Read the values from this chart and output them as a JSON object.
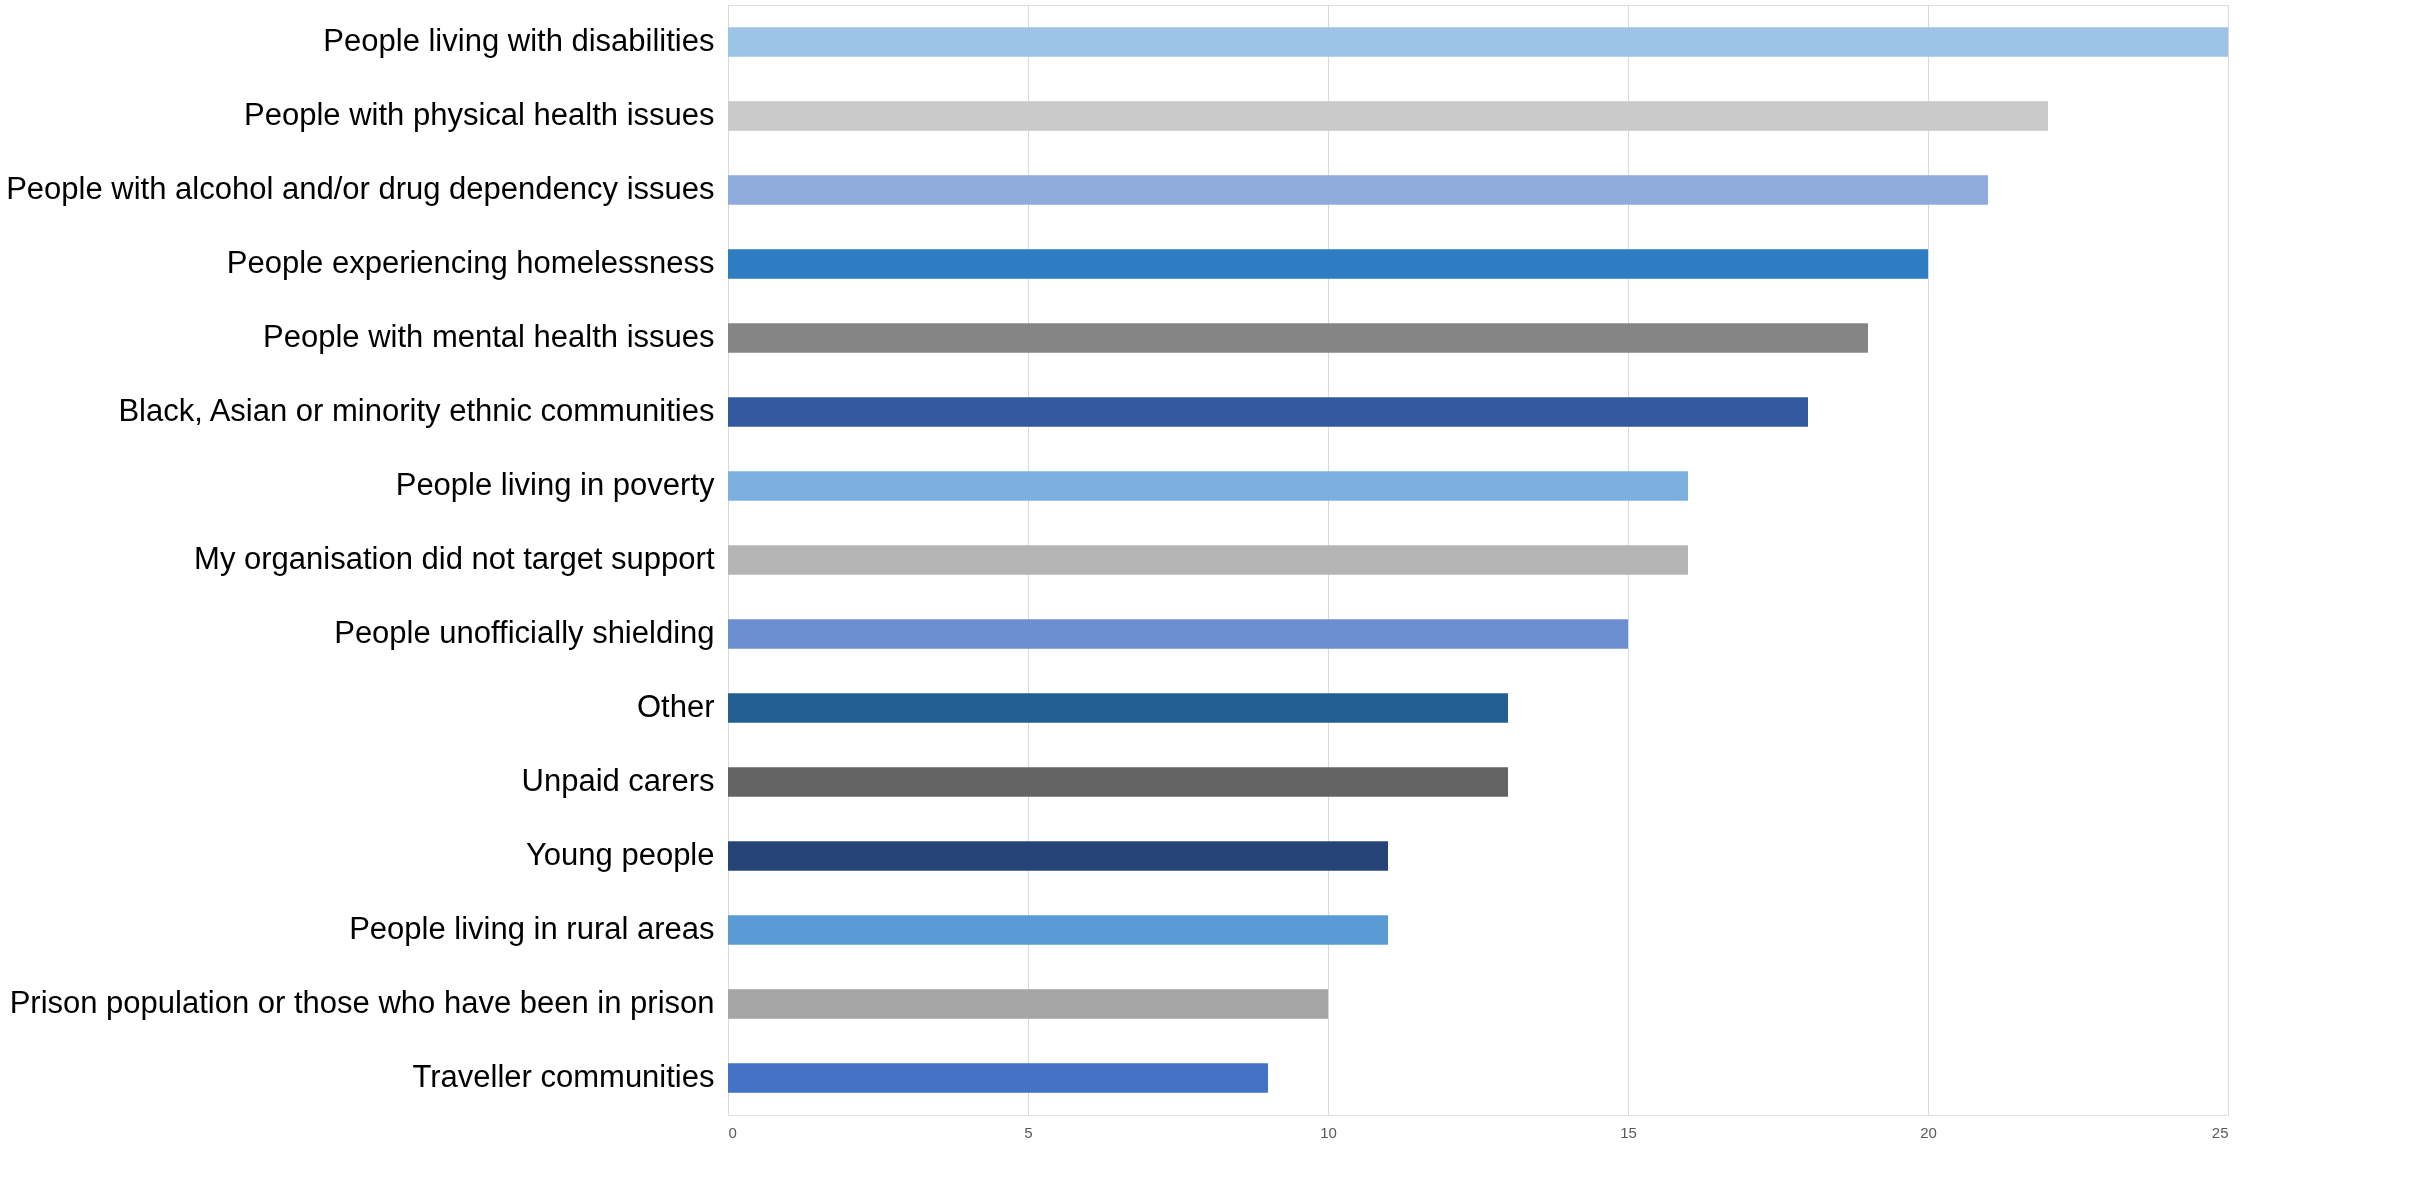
{
  "chart_data": {
    "type": "bar",
    "orientation": "horizontal",
    "categories": [
      "People living with disabilities",
      "People with physical health issues",
      "People with alcohol and/or drug dependency issues",
      "People experiencing homelessness",
      "People with mental health issues",
      "Black, Asian or minority ethnic communities",
      "People living in poverty",
      "My organisation did not target support",
      "People unofficially shielding",
      "Other",
      "Unpaid carers",
      "Young people",
      "People living in rural areas",
      "Prison population or those who have been in prison",
      "Traveller communities"
    ],
    "values": [
      25,
      22,
      21,
      20,
      19,
      18,
      16,
      16,
      15,
      13,
      13,
      11,
      11,
      10,
      9
    ],
    "colors": [
      "#9dc3e6",
      "#c9c9c9",
      "#8faadc",
      "#2e7dc2",
      "#858585",
      "#335aa1",
      "#7eb0df",
      "#b5b5b5",
      "#6b8fd0",
      "#235f91",
      "#636363",
      "#264478",
      "#5b9bd5",
      "#a5a5a5",
      "#4472c4"
    ],
    "xlim": [
      0,
      25
    ],
    "xticks": [
      0,
      5,
      10,
      15,
      20,
      25
    ],
    "grid": "x",
    "legend": false
  }
}
